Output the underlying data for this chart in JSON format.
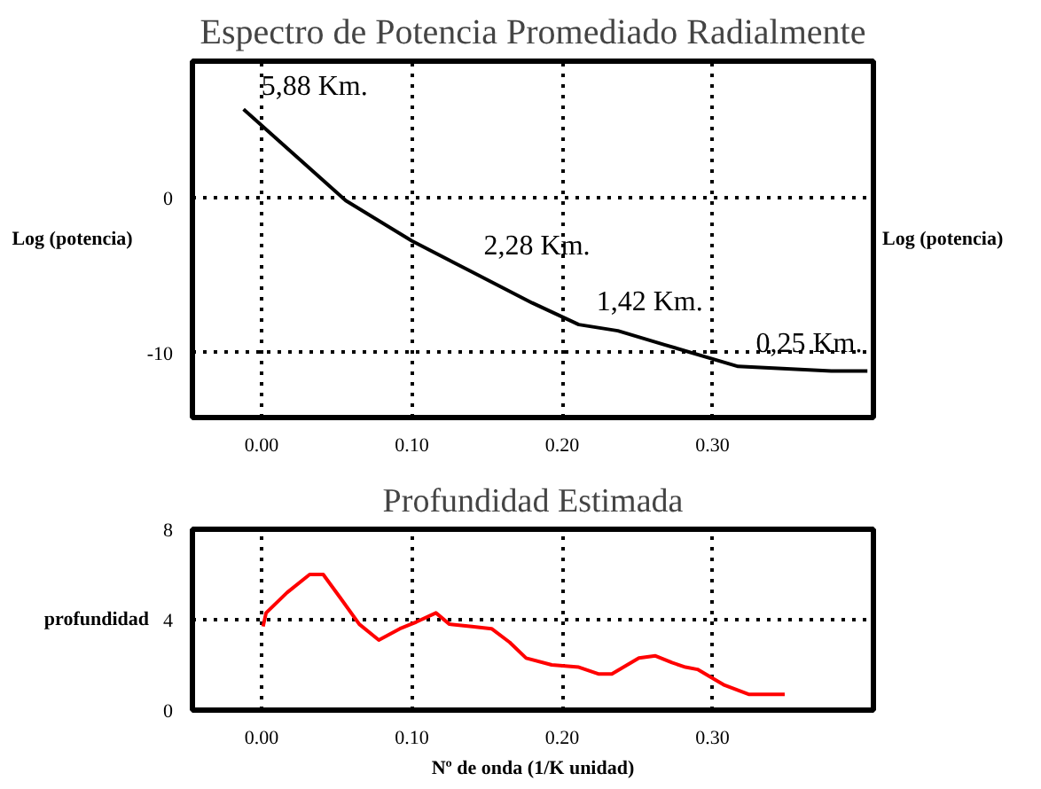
{
  "chart_data": [
    {
      "type": "line",
      "title": "Espectro de Potencia Promediado Radialmente",
      "ylabel": "Log (potencia)",
      "y2label": "Log (potencia)",
      "color": "#000000",
      "x": [
        -0.012,
        0.056,
        0.1,
        0.136,
        0.18,
        0.211,
        0.237,
        0.268,
        0.317,
        0.379,
        0.403
      ],
      "values": [
        5.7,
        -0.2,
        -2.8,
        -4.6,
        -6.8,
        -8.2,
        -8.6,
        -9.5,
        -10.9,
        -11.2,
        -11.2
      ],
      "xlim": [
        -0.046,
        0.407
      ],
      "ylim": [
        -14.2,
        8.8
      ],
      "xticks": [
        {
          "value": 0,
          "label": "0.00"
        },
        {
          "value": 0.1,
          "label": "0.10"
        },
        {
          "value": 0.2,
          "label": "0.20"
        },
        {
          "value": 0.3,
          "label": "0.30"
        }
      ],
      "yticks": [
        -10,
        0
      ],
      "grid": true,
      "annotations": [
        "5,88 Km.",
        "2,28 Km.",
        "1,42 Km.",
        "0,25 Km."
      ]
    },
    {
      "type": "line",
      "title": "Profundidad Estimada",
      "ylabel": "profundidad",
      "xlabel": "Nº de onda (1/K unidad)",
      "color": "#ff0000",
      "x": [
        0.001,
        0.003,
        0.017,
        0.032,
        0.041,
        0.052,
        0.065,
        0.078,
        0.092,
        0.103,
        0.116,
        0.125,
        0.14,
        0.153,
        0.165,
        0.176,
        0.193,
        0.211,
        0.224,
        0.233,
        0.251,
        0.262,
        0.273,
        0.282,
        0.29,
        0.308,
        0.324,
        0.348
      ],
      "values": [
        3.7,
        4.3,
        5.2,
        6.0,
        6.0,
        5.0,
        3.8,
        3.1,
        3.6,
        3.9,
        4.3,
        3.8,
        3.7,
        3.6,
        3.0,
        2.3,
        2.0,
        1.9,
        1.6,
        1.6,
        2.3,
        2.4,
        2.1,
        1.9,
        1.8,
        1.1,
        0.7,
        0.7
      ],
      "xlim": [
        -0.046,
        0.407
      ],
      "ylim": [
        0,
        8
      ],
      "xticks": [
        {
          "value": 0,
          "label": "0.00"
        },
        {
          "value": 0.1,
          "label": "0.10"
        },
        {
          "value": 0.2,
          "label": "0.20"
        },
        {
          "value": 0.3,
          "label": "0.30"
        }
      ],
      "yticks": [
        0,
        4,
        8
      ],
      "grid": true
    }
  ]
}
